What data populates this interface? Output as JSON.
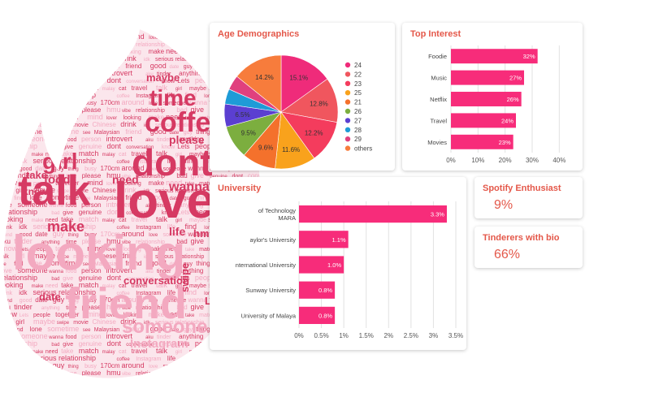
{
  "colors": {
    "accent": "#e4584a",
    "bar": "#f72c7a",
    "wordcloud_dark": "#d63a63",
    "wordcloud_light": "#f3a9c0"
  },
  "wordcloud": {
    "words": [
      "talk",
      "love",
      "looking",
      "friend",
      "dont",
      "coffee",
      "time",
      "girl",
      "someone",
      "make",
      "good",
      "conversation",
      "Instagram",
      "please",
      "maybe",
      "wanna",
      "need",
      "date",
      "know",
      "life",
      "hmu",
      "swipe",
      "food",
      "take",
      "guy",
      "Lets",
      "find",
      "vibe",
      "movie",
      "person",
      "match",
      "thing",
      "people",
      "lone",
      "relationship",
      "Chinese",
      "introvert",
      "malay",
      "busy",
      "together",
      "sometime",
      "bad",
      "drink",
      "aku",
      "cat",
      "170cm",
      "mind",
      "see",
      "give",
      "idk",
      "tinder",
      "travel",
      "around",
      "lover",
      "Malaysian",
      "genuine",
      "serious relationship",
      "anything"
    ]
  },
  "cards": {
    "age": {
      "title": "Age Demographics"
    },
    "interest": {
      "title": "Top Interest"
    },
    "university": {
      "title": "University"
    },
    "spotify": {
      "title": "Spotify Enthusiast",
      "value": "9%"
    },
    "bio": {
      "title": "Tinderers with bio",
      "value": "66%"
    }
  },
  "chart_data": [
    {
      "type": "pie",
      "title": "Age Demographics",
      "legend_position": "right",
      "slices": [
        {
          "label": "24",
          "value": 15.1,
          "display": "15.1%",
          "color": "#ef2b7a"
        },
        {
          "label": "22",
          "value": 12.8,
          "display": "12.8%",
          "color": "#f0565e"
        },
        {
          "label": "23",
          "value": 12.2,
          "display": "12.2%",
          "color": "#f43c5d"
        },
        {
          "label": "25",
          "value": 11.6,
          "display": "11.6%",
          "color": "#f9a21c"
        },
        {
          "label": "21",
          "value": 9.6,
          "display": "9.6%",
          "color": "#f4712c"
        },
        {
          "label": "26",
          "value": 9.5,
          "display": "9.5%",
          "color": "#7cae3f"
        },
        {
          "label": "27",
          "value": 6.5,
          "display": "6.5%",
          "color": "#5b3fd1"
        },
        {
          "label": "28",
          "value": 4.3,
          "display": "",
          "color": "#1e9bd7"
        },
        {
          "label": "29",
          "value": 4.2,
          "display": "",
          "color": "#e0407e"
        },
        {
          "label": "others",
          "value": 14.2,
          "display": "14.2%",
          "color": "#f77c3c"
        }
      ]
    },
    {
      "type": "bar",
      "orientation": "horizontal",
      "title": "Top Interest",
      "categories": [
        "Foodie",
        "Music",
        "Netflix",
        "Travel",
        "Movies"
      ],
      "values": [
        32,
        27,
        26,
        24,
        23
      ],
      "labels": [
        "32%",
        "27%",
        "26%",
        "24%",
        "23%"
      ],
      "xlim": [
        0,
        45
      ],
      "ticks": [
        0,
        10,
        20,
        30,
        40
      ],
      "tick_labels": [
        "0%",
        "10%",
        "20%",
        "30%",
        "40%"
      ],
      "grid": true
    },
    {
      "type": "bar",
      "orientation": "horizontal",
      "title": "University",
      "categories": [
        "of Technology MARA",
        "Taylor's University",
        "International University",
        "Sunway University",
        "University of Malaya"
      ],
      "category_lines": [
        [
          "of Technology",
          "MARA"
        ],
        [
          "aylor's University"
        ],
        [
          "nternational University"
        ],
        [
          "Sunway University"
        ],
        [
          "University of Malaya"
        ]
      ],
      "values": [
        3.3,
        1.1,
        1.0,
        0.8,
        0.8
      ],
      "labels": [
        "3.3%",
        "1.1%",
        "1.0%",
        "0.8%",
        "0.8%"
      ],
      "xlim": [
        0,
        3.5
      ],
      "ticks": [
        0,
        0.5,
        1,
        1.5,
        2,
        2.5,
        3,
        3.5
      ],
      "tick_labels": [
        "0%",
        "0.5%",
        "1%",
        "1.5%",
        "2%",
        "2.5%",
        "3%",
        "3.5%"
      ],
      "grid": true
    }
  ]
}
